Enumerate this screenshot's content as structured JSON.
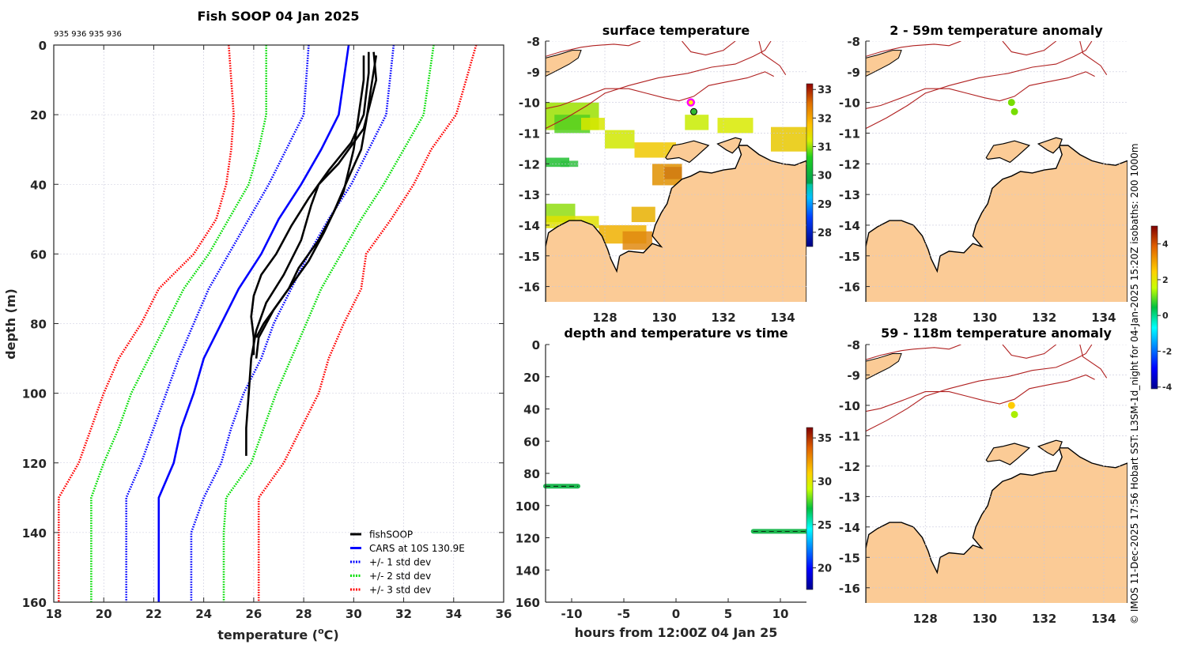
{
  "chart_data": [
    {
      "id": "profile",
      "type": "line",
      "title": "Fish SOOP 04 Jan 2025",
      "subtitle": "935 936 935 936",
      "xlabel": "temperature (°C)",
      "xlabel_main": "temperature (",
      "xlabel_sup": "o",
      "xlabel_end": "C)",
      "ylabel": "depth (m)",
      "xlim": [
        18,
        36
      ],
      "ylim": [
        0,
        160
      ],
      "y_reversed": true,
      "grid": true,
      "xticks": [
        18,
        20,
        22,
        24,
        26,
        28,
        30,
        32,
        34,
        36
      ],
      "yticks": [
        0,
        20,
        40,
        60,
        80,
        100,
        120,
        140,
        160
      ],
      "legend_position": "bottom-right",
      "legend": [
        {
          "label": "fishSOOP",
          "color": "#000000",
          "style": "solid"
        },
        {
          "label": "CARS at 10S 130.9E",
          "color": "#0000ff",
          "style": "solid"
        },
        {
          "label": "+/- 1 std dev",
          "color": "#0000ff",
          "style": "dotted"
        },
        {
          "label": "+/- 2 std dev",
          "color": "#00dd00",
          "style": "dotted"
        },
        {
          "label": "+/- 3 std dev",
          "color": "#ff0000",
          "style": "dotted"
        }
      ],
      "depth": [
        0,
        20,
        30,
        40,
        50,
        60,
        70,
        80,
        90,
        100,
        110,
        120,
        130,
        140,
        160
      ],
      "series": [
        {
          "name": "CARS at 10S 130.9E",
          "color": "#0000ff",
          "style": "solid",
          "values": [
            29.8,
            29.4,
            28.7,
            27.9,
            27.0,
            26.3,
            25.4,
            24.7,
            24.0,
            23.6,
            23.1,
            22.8,
            22.2,
            22.2,
            22.2
          ]
        },
        {
          "name": "+1 std dev",
          "color": "#0000ff",
          "style": "dotted",
          "values": [
            31.6,
            31.3,
            30.6,
            29.9,
            29.0,
            28.2,
            27.5,
            26.8,
            26.3,
            25.6,
            25.1,
            24.7,
            24.0,
            23.5,
            23.5
          ]
        },
        {
          "name": "-1 std dev",
          "color": "#0000ff",
          "style": "dotted",
          "values": [
            28.2,
            28.0,
            27.3,
            26.6,
            25.8,
            25.0,
            24.2,
            23.6,
            23.0,
            22.5,
            22.0,
            21.5,
            20.9,
            20.9,
            20.9
          ]
        },
        {
          "name": "+2 std dev",
          "color": "#00dd00",
          "style": "dotted",
          "values": [
            33.2,
            32.8,
            32.0,
            31.2,
            30.3,
            29.5,
            28.7,
            28.1,
            27.5,
            26.9,
            26.4,
            25.9,
            24.9,
            24.8,
            24.8
          ]
        },
        {
          "name": "-2 std dev",
          "color": "#00dd00",
          "style": "dotted",
          "values": [
            26.5,
            26.5,
            26.2,
            25.8,
            25.0,
            24.2,
            23.2,
            22.5,
            21.8,
            21.1,
            20.6,
            20.0,
            19.5,
            19.5,
            19.5
          ]
        },
        {
          "name": "+3 std dev",
          "color": "#ff0000",
          "style": "dotted",
          "values": [
            34.9,
            34.1,
            33.1,
            32.4,
            31.5,
            30.5,
            30.3,
            29.6,
            29.0,
            28.6,
            27.9,
            27.2,
            26.2,
            26.2,
            26.2
          ]
        },
        {
          "name": "-3 std dev",
          "color": "#ff0000",
          "style": "dotted",
          "values": [
            25.0,
            25.2,
            25.1,
            24.9,
            24.5,
            23.6,
            22.2,
            21.5,
            20.6,
            20.0,
            19.5,
            19.0,
            18.2,
            18.2,
            18.2
          ]
        }
      ],
      "casts": [
        {
          "name": "fishSOOP cast 1",
          "depth": [
            2,
            8,
            20,
            28,
            36,
            44,
            52,
            60,
            66,
            72,
            78,
            84,
            89
          ],
          "values": [
            30.6,
            30.6,
            30.4,
            29.9,
            29.0,
            28.2,
            27.5,
            26.9,
            26.3,
            26.0,
            25.9,
            26.0,
            26.0
          ]
        },
        {
          "name": "fishSOOP cast 2",
          "depth": [
            2,
            10,
            24,
            34,
            40,
            46,
            56,
            66,
            74,
            82,
            90,
            100,
            110,
            118
          ],
          "values": [
            30.8,
            30.9,
            30.4,
            29.4,
            28.6,
            28.3,
            27.9,
            27.2,
            26.5,
            26.1,
            25.9,
            25.8,
            25.7,
            25.7
          ]
        },
        {
          "name": "fishSOOP cast 3",
          "depth": [
            3,
            10,
            20,
            30,
            42,
            54,
            62,
            70,
            76,
            84,
            90
          ],
          "values": [
            30.4,
            30.4,
            30.2,
            30.0,
            29.6,
            28.8,
            28.2,
            27.4,
            26.8,
            26.2,
            26.1
          ]
        },
        {
          "name": "fishSOOP cast 4",
          "depth": [
            3,
            12,
            22,
            30,
            38,
            48,
            56,
            64,
            70,
            76,
            80,
            84
          ],
          "values": [
            30.9,
            30.7,
            30.5,
            30.3,
            29.8,
            29.2,
            28.6,
            27.8,
            27.4,
            26.8,
            26.4,
            26.1
          ]
        }
      ]
    },
    {
      "id": "sst-map",
      "type": "heatmap",
      "title": "surface temperature",
      "xlim": [
        126,
        134.8
      ],
      "ylim": [
        -16.5,
        -8
      ],
      "xticks": [
        128,
        130,
        132,
        134
      ],
      "yticks": [
        -8,
        -9,
        -10,
        -11,
        -12,
        -13,
        -14,
        -15,
        -16
      ],
      "colorbar": {
        "ticks": [
          28,
          29,
          30,
          31,
          32,
          33
        ],
        "range": [
          27.5,
          33.2
        ]
      },
      "markers": [
        {
          "lon": 130.9,
          "lat": -10.0,
          "style": "ring",
          "color": "#ff00ff"
        },
        {
          "lon": 131.0,
          "lat": -10.3,
          "style": "filled",
          "color": "#33bb33"
        }
      ]
    },
    {
      "id": "anomaly-shallow",
      "type": "heatmap",
      "title": "2 - 59m temperature anomaly",
      "xlim": [
        126,
        134.8
      ],
      "ylim": [
        -16.5,
        -8
      ],
      "xticks": [
        128,
        130,
        132,
        134
      ],
      "yticks": [
        -8,
        -9,
        -10,
        -11,
        -12,
        -13,
        -14,
        -15,
        -16
      ],
      "markers": [
        {
          "lon": 130.9,
          "lat": -10.0,
          "anomaly": 0.6,
          "color": "#77dd00"
        },
        {
          "lon": 131.0,
          "lat": -10.3,
          "anomaly": 0.6,
          "color": "#77dd00"
        }
      ]
    },
    {
      "id": "anomaly-deep",
      "type": "heatmap",
      "title": "59 - 118m temperature anomaly",
      "xlim": [
        126,
        134.8
      ],
      "ylim": [
        -16.5,
        -8
      ],
      "xticks": [
        128,
        130,
        132,
        134
      ],
      "yticks": [
        -8,
        -9,
        -10,
        -11,
        -12,
        -13,
        -14,
        -15,
        -16
      ],
      "markers": [
        {
          "lon": 130.9,
          "lat": -10.0,
          "anomaly": 2.3,
          "color": "#ffcc00"
        },
        {
          "lon": 131.0,
          "lat": -10.3,
          "anomaly": 1.0,
          "color": "#aaee00"
        }
      ],
      "colorbar": {
        "ticks": [
          -4,
          -2,
          0,
          2,
          4
        ],
        "range": [
          -4.1,
          5.0
        ]
      }
    },
    {
      "id": "time-depth",
      "type": "scatter",
      "title": "depth and temperature vs time",
      "xlabel": "hours from 12:00Z 04 Jan 25",
      "xlim": [
        -12.5,
        12.5
      ],
      "ylim": [
        0,
        160
      ],
      "y_reversed": true,
      "xticks": [
        -10,
        -5,
        0,
        5,
        10
      ],
      "yticks": [
        0,
        20,
        40,
        60,
        80,
        100,
        120,
        140,
        160
      ],
      "colorbar": {
        "ticks": [
          20,
          25,
          30,
          35
        ],
        "range": [
          17.5,
          36.2
        ]
      },
      "casts": [
        {
          "hour": -11.3,
          "max_depth": 88,
          "surface_temp": 30.6,
          "bottom_temp": 26.0
        },
        {
          "hour": -9.4,
          "max_depth": 88,
          "surface_temp": 30.8,
          "bottom_temp": 26.0
        },
        {
          "hour": 7.4,
          "max_depth": 115,
          "surface_temp": 30.6,
          "bottom_temp": 25.8
        },
        {
          "hour": 8.6,
          "max_depth": 117,
          "surface_temp": 30.9,
          "bottom_temp": 25.8
        }
      ],
      "bottom_segments": [
        {
          "from": -12.5,
          "to": -9.4,
          "depth": 88
        },
        {
          "from": 7.4,
          "to": 12.5,
          "depth": 116
        }
      ]
    }
  ],
  "credit": "© IMOS 11-Dec-2025 17:56 Hobart SST: L3SM-1d_night for 04-Jan-2025 15:20Z isobaths: 200  1000m"
}
